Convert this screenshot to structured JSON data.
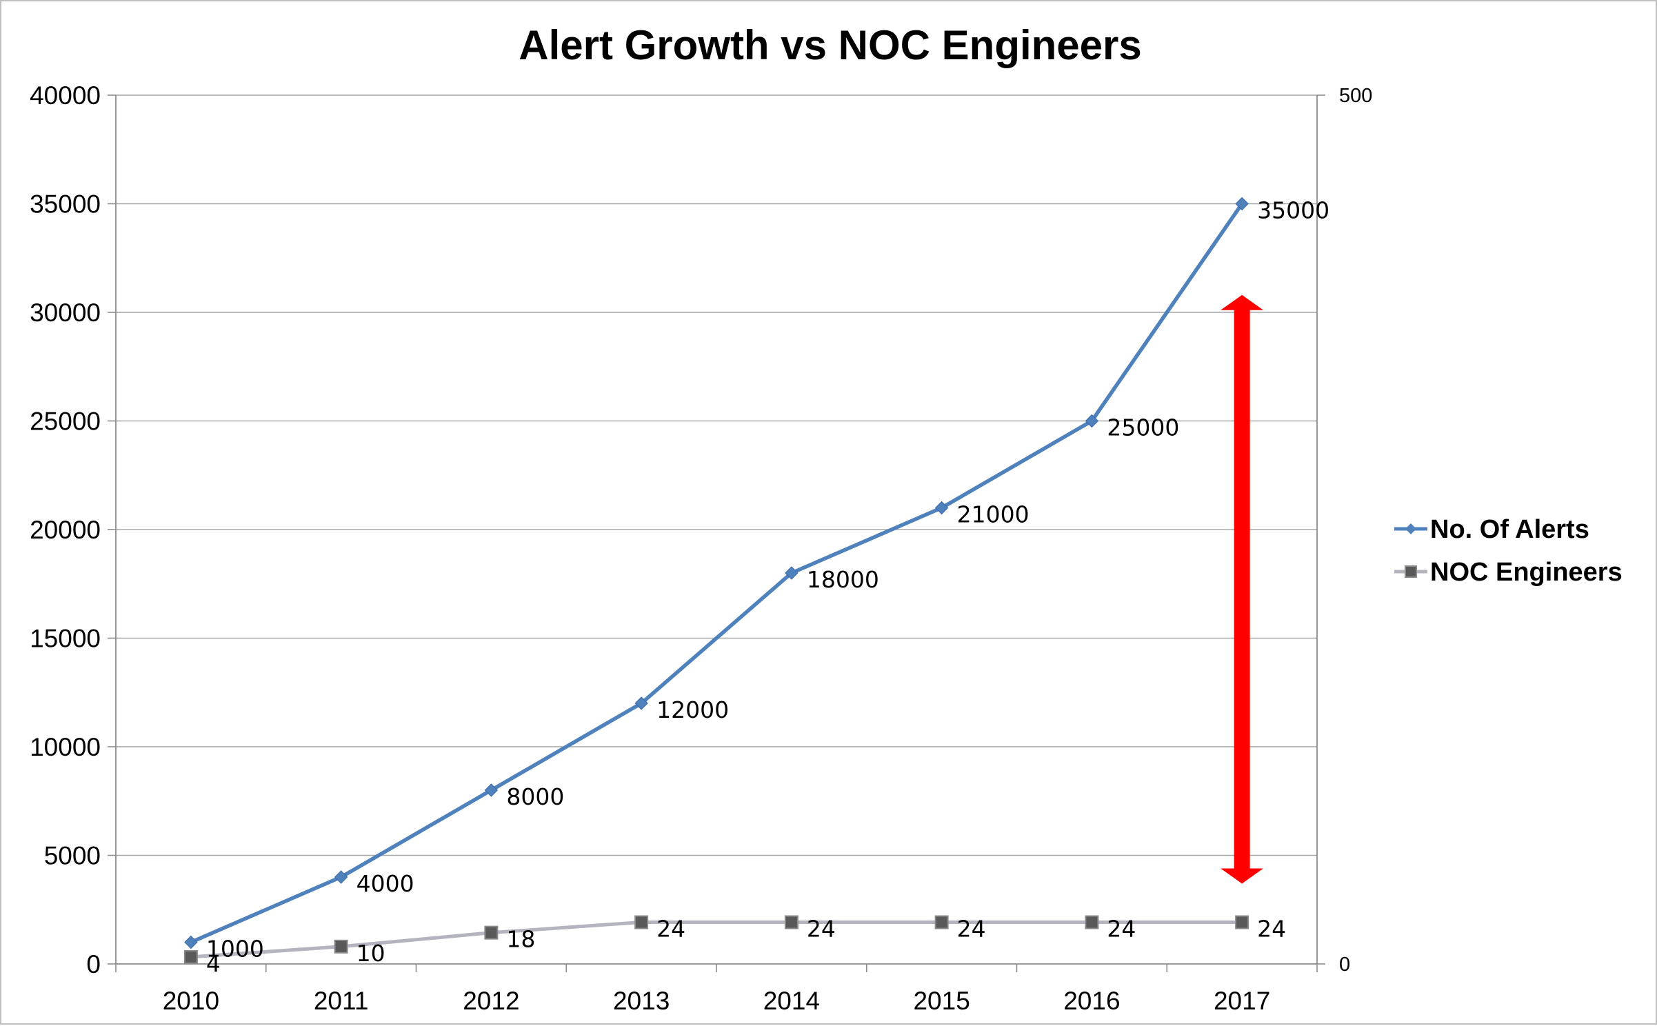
{
  "chart_data": {
    "type": "line",
    "title": "Alert Growth vs NOC Engineers",
    "categories": [
      "2010",
      "2011",
      "2012",
      "2013",
      "2014",
      "2015",
      "2016",
      "2017"
    ],
    "y_left": {
      "range": [
        0,
        40000
      ],
      "ticks": [
        0,
        5000,
        10000,
        15000,
        20000,
        25000,
        30000,
        35000,
        40000
      ]
    },
    "y_right": {
      "range": [
        0,
        500
      ],
      "ticks": [
        0,
        500
      ]
    },
    "grid": true,
    "legend_position": "right",
    "series": [
      {
        "name": "No. Of Alerts",
        "axis": "left",
        "color": "#4f81bd",
        "marker": "diamond",
        "values": [
          1000,
          4000,
          8000,
          12000,
          18000,
          21000,
          25000,
          35000
        ],
        "labels": [
          "1000",
          "4000",
          "8000",
          "12000",
          "18000",
          "21000",
          "25000",
          "35000"
        ]
      },
      {
        "name": "NOC Engineers",
        "axis": "right",
        "color": "#b4b4bf",
        "marker_color": "#595959",
        "marker": "square",
        "values": [
          4,
          10,
          18,
          24,
          24,
          24,
          24,
          24
        ],
        "labels": [
          "4",
          "10",
          "18",
          "24",
          "24",
          "24",
          "24",
          "24"
        ]
      }
    ],
    "annotation": {
      "type": "double-arrow",
      "color": "#ff0000",
      "category": "2017",
      "y_top": 30800,
      "y_bottom": 3700
    }
  }
}
